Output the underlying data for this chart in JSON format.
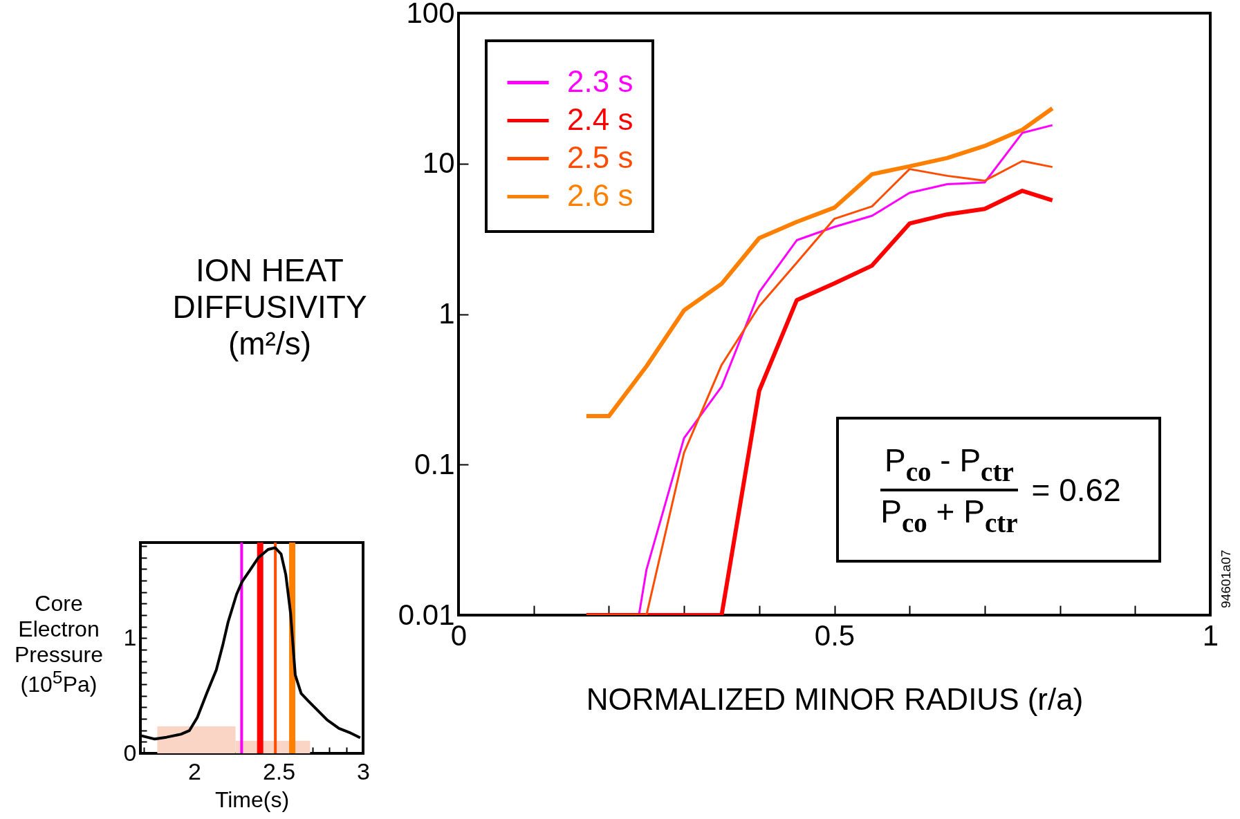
{
  "chart_data": [
    {
      "type": "line",
      "xlabel": "NORMALIZED MINOR RADIUS (r/a)",
      "ylabel": "ION HEAT DIFFUSIVITY (m²/s)",
      "log": true,
      "grid": false,
      "legend": "top left",
      "xlim": [
        0,
        1
      ],
      "xticks": [
        0,
        {
          "value": 0.1,
          "label": null
        },
        {
          "value": 0.2,
          "label": null
        },
        {
          "value": 0.3,
          "label": null
        },
        {
          "value": 0.4,
          "label": null
        },
        0.5,
        {
          "value": 0.6,
          "label": null
        },
        {
          "value": 0.7,
          "label": null
        },
        {
          "value": 0.8,
          "label": null
        },
        {
          "value": 0.9,
          "label": null
        },
        1
      ],
      "ylim": [
        0.01,
        100
      ],
      "yticks": [
        0.01,
        0.1,
        1,
        10,
        100
      ],
      "series": [
        {
          "name": "2.3 s",
          "color": "#ff00ff",
          "x": [
            0.24,
            0.25,
            0.3,
            0.35,
            0.4,
            0.45,
            0.5,
            0.55,
            0.6,
            0.65,
            0.7,
            0.75,
            0.79
          ],
          "values": [
            0.01,
            0.02,
            0.15,
            0.33,
            1.4,
            3.1,
            3.8,
            4.5,
            6.4,
            7.3,
            7.5,
            16,
            18
          ]
        },
        {
          "name": "2.4 s",
          "color": "#ff0000",
          "x": [
            0.17,
            0.35,
            0.4,
            0.45,
            0.5,
            0.55,
            0.6,
            0.65,
            0.7,
            0.75,
            0.79
          ],
          "values": [
            0.01,
            0.01,
            0.31,
            1.24,
            1.6,
            2.1,
            4,
            4.6,
            5,
            6.6,
            5.7
          ]
        },
        {
          "name": "2.5 s",
          "color": "#ff4c00",
          "x": [
            0.17,
            0.25,
            0.3,
            0.35,
            0.4,
            0.45,
            0.5,
            0.55,
            0.6,
            0.65,
            0.7,
            0.75,
            0.79
          ],
          "values": [
            0.01,
            0.01,
            0.12,
            0.46,
            1.13,
            2.2,
            4.3,
            5.2,
            9.2,
            8.3,
            7.7,
            10.4,
            9.5
          ]
        },
        {
          "name": "2.6 s",
          "color": "#ff8000",
          "x": [
            0.17,
            0.2,
            0.25,
            0.3,
            0.35,
            0.4,
            0.45,
            0.5,
            0.55,
            0.6,
            0.65,
            0.7,
            0.75,
            0.79
          ],
          "values": [
            0.21,
            0.21,
            0.45,
            1.06,
            1.59,
            3.2,
            4.1,
            5.1,
            8.5,
            9.6,
            10.9,
            13.1,
            16.8,
            23.3
          ]
        }
      ],
      "annotations": [
        "P$_{co}$ - P$_{ctr}$",
        "P$_{co}$ + P$_{ctr}$",
        "= 0.62",
        "94601a07"
      ]
    },
    {
      "type": "line",
      "xlabel": "Time(s)",
      "ylabel": "Core Electron Pressure (10$^{5}$Pa)",
      "grid": false,
      "xlim": [
        1.68,
        3
      ],
      "xticks": [
        {
          "value": 1.7,
          "label": null
        },
        {
          "value": 1.8,
          "label": null
        },
        {
          "value": 1.9,
          "label": null
        },
        2,
        {
          "value": 2.1,
          "label": null
        },
        {
          "value": 2.2,
          "label": null
        },
        {
          "value": 2.3,
          "label": null
        },
        {
          "value": 2.4,
          "label": null
        },
        2.5,
        {
          "value": 2.6,
          "label": null
        },
        {
          "value": 2.7,
          "label": null
        },
        {
          "value": 2.8,
          "label": null
        },
        {
          "value": 2.9,
          "label": null
        },
        3
      ],
      "ylim": [
        0,
        1.83
      ],
      "yticks": [
        0,
        {
          "value": 0.1,
          "label": null
        },
        {
          "value": 0.2,
          "label": null
        },
        {
          "value": 0.3,
          "label": null
        },
        {
          "value": 0.4,
          "label": null
        },
        {
          "value": 0.5,
          "label": null
        },
        {
          "value": 0.6,
          "label": null
        },
        {
          "value": 0.7,
          "label": null
        },
        {
          "value": 0.8,
          "label": null
        },
        {
          "value": 0.9,
          "label": null
        },
        1,
        {
          "value": 1.1,
          "label": null
        },
        {
          "value": 1.2,
          "label": null
        },
        {
          "value": 1.3,
          "label": null
        },
        {
          "value": 1.4,
          "label": null
        },
        {
          "value": 1.5,
          "label": null
        },
        {
          "value": 1.6,
          "label": null
        },
        {
          "value": 1.7,
          "label": null
        },
        {
          "value": 1.8,
          "label": null
        }
      ],
      "series": [
        {
          "type": "area",
          "color": "#fad4c4",
          "x": [
            1.78,
            2.244
          ],
          "values": [
            0.234,
            0.234
          ]
        },
        {
          "type": "area",
          "color": "#fad4c4",
          "x": [
            2.244,
            2.686
          ],
          "values": [
            0.11,
            0.11
          ]
        },
        {
          "color": "#000000",
          "x": [
            1.68,
            1.765,
            1.835,
            1.92,
            1.97,
            2.017,
            2.073,
            2.13,
            2.17,
            2.2,
            2.25,
            2.283,
            2.325,
            2.38,
            2.437,
            2.479,
            2.514,
            2.542,
            2.57,
            2.598,
            2.633,
            2.675,
            2.731,
            2.787,
            2.857,
            2.927,
            2.983
          ],
          "values": [
            0.155,
            0.124,
            0.14,
            0.166,
            0.197,
            0.31,
            0.52,
            0.725,
            0.95,
            1.14,
            1.38,
            1.49,
            1.58,
            1.7,
            1.77,
            1.785,
            1.73,
            1.55,
            1.22,
            0.68,
            0.52,
            0.455,
            0.373,
            0.29,
            0.217,
            0.176,
            0.135
          ]
        }
      ],
      "ref_lines": [
        {
          "axis": "x",
          "value": 2.28,
          "color": "#ff00ff"
        },
        {
          "axis": "x",
          "value": 2.39,
          "color": "#ff0000"
        },
        {
          "axis": "x",
          "value": 2.48,
          "color": "#ff4c00"
        },
        {
          "axis": "x",
          "value": 2.58,
          "color": "#ff8000"
        }
      ]
    }
  ]
}
